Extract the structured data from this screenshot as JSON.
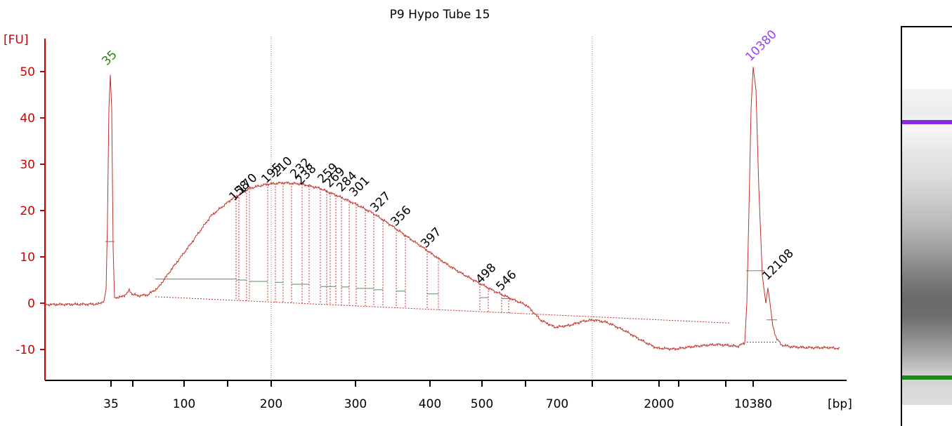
{
  "chart_data": {
    "type": "line",
    "title": "P9 Hypo Tube 15",
    "xlabel": "[bp]",
    "ylabel": "[FU]",
    "ylim": [
      -16,
      58
    ],
    "yticks": [
      -10,
      0,
      10,
      20,
      30,
      40,
      50
    ],
    "xticks": [
      "35",
      "100",
      "200",
      "300",
      "400",
      "500",
      "700",
      "2000",
      "10380"
    ],
    "marker_peaks": [
      {
        "label": "35",
        "size_bp": 35,
        "fu": 49,
        "color": "#2e7d12"
      },
      {
        "label": "10380",
        "size_bp": 10380,
        "fu": 51,
        "color": "#9a3dff"
      }
    ],
    "peak_labels": [
      "158",
      "170",
      "195",
      "210",
      "232",
      "238",
      "259",
      "269",
      "284",
      "301",
      "327",
      "356",
      "397",
      "498",
      "546",
      "12108"
    ],
    "line_color": "#c0302a",
    "gel": {
      "upper_marker_color": "#8a2be2",
      "lower_marker_color": "#1a8a1a"
    }
  }
}
